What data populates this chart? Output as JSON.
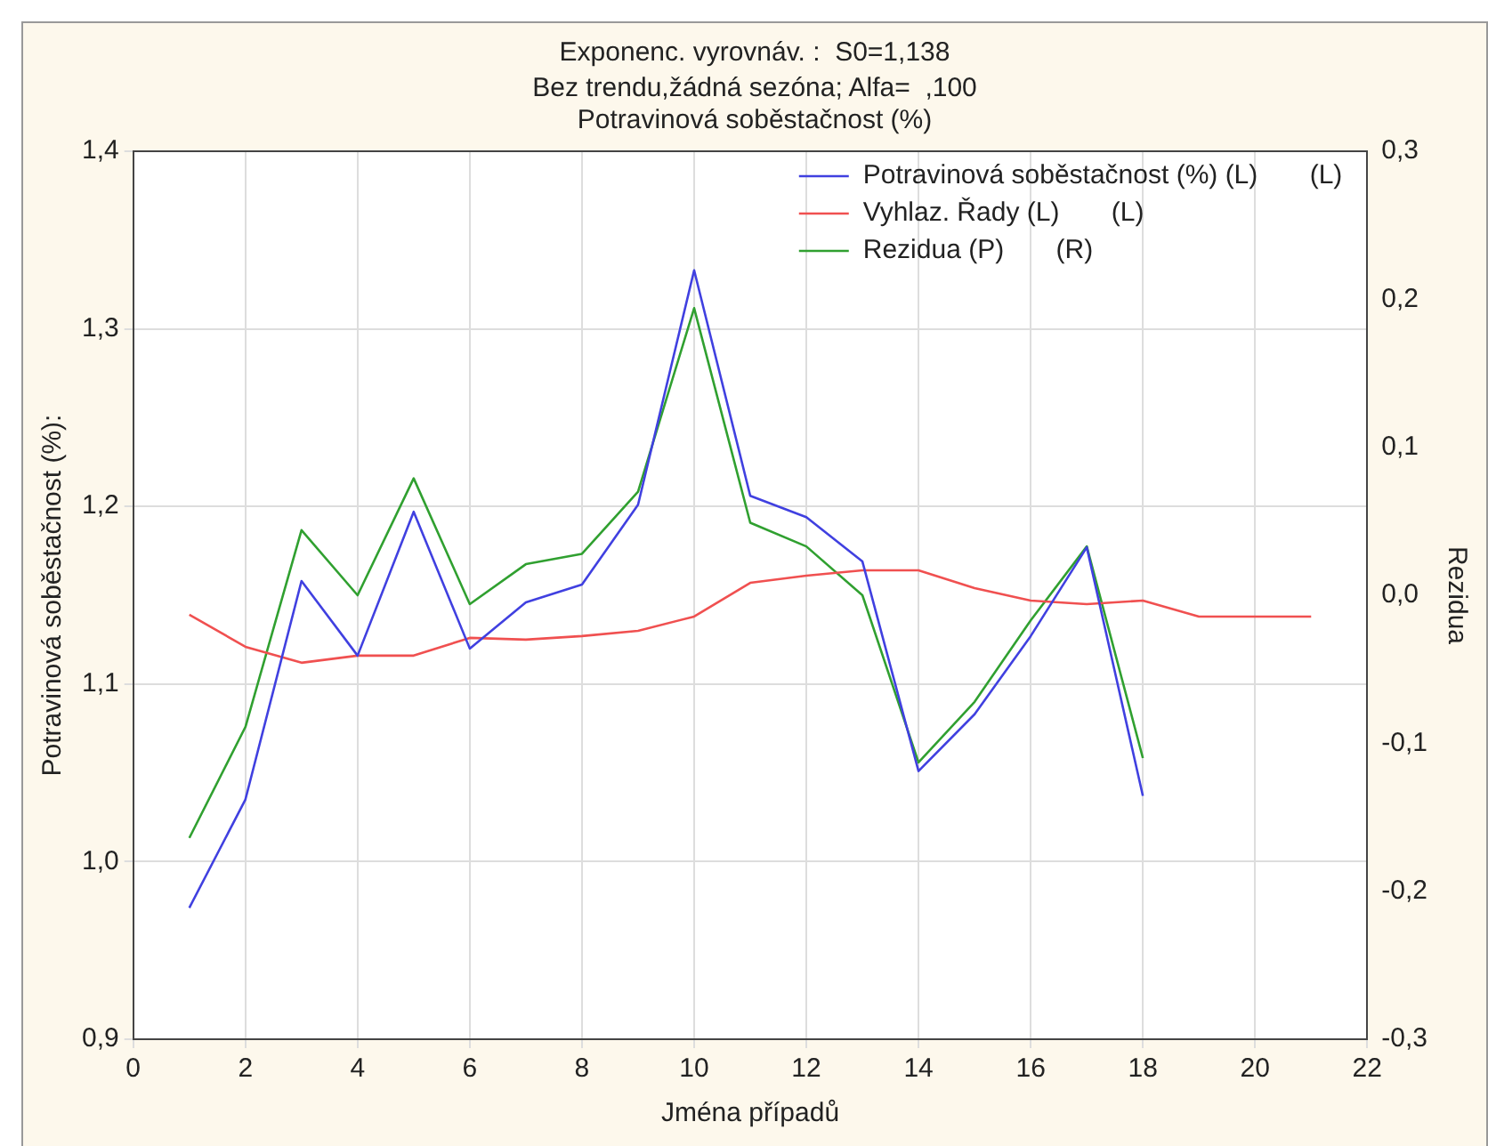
{
  "chart_data": {
    "type": "line",
    "title": "Exponenc. vyrovnáv. :  S0=1,138",
    "subtitle": [
      "Bez trendu,žádná sezóna; Alfa=  ,100",
      "Potravinová soběstačnost (%)"
    ],
    "xlabel": "Jména případů",
    "ylabel": "Potravinová soběstačnost (%):",
    "y2label": "Rezidua",
    "xlim": [
      0,
      22
    ],
    "xticks": [
      0,
      2,
      4,
      6,
      8,
      10,
      12,
      14,
      16,
      18,
      20,
      22
    ],
    "ylim": [
      0.9,
      1.4
    ],
    "yticks": [
      {
        "value": 0.9,
        "label": "0,9"
      },
      {
        "value": 1.0,
        "label": "1,0"
      },
      {
        "value": 1.1,
        "label": "1,1"
      },
      {
        "value": 1.2,
        "label": "1,2"
      },
      {
        "value": 1.3,
        "label": "1,3"
      },
      {
        "value": 1.4,
        "label": "1,4"
      }
    ],
    "y2lim": [
      -0.3,
      0.3
    ],
    "y2ticks": [
      {
        "value": -0.3,
        "label": "-0,3"
      },
      {
        "value": -0.2,
        "label": "-0,2"
      },
      {
        "value": -0.1,
        "label": "-0,1"
      },
      {
        "value": 0,
        "label": "0,0"
      },
      {
        "value": 0.1,
        "label": "0,1"
      },
      {
        "value": 0.2,
        "label": "0,2"
      },
      {
        "value": 0.3,
        "label": "0,3"
      }
    ],
    "grid": true,
    "legend": "top right",
    "marker": "none",
    "line_style": "solid",
    "series": [
      {
        "name": "Potravinová soběstačnost (%) (L)       (L)",
        "color": "#4040e0",
        "x": [
          1,
          2,
          3,
          4,
          5,
          6,
          7,
          8,
          9,
          10,
          11,
          12,
          13,
          14,
          15,
          16,
          17,
          18
        ],
        "values": [
          0.974,
          1.035,
          1.158,
          1.116,
          1.197,
          1.12,
          1.146,
          1.156,
          1.201,
          1.333,
          1.206,
          1.194,
          1.169,
          1.051,
          1.083,
          1.127,
          1.177,
          1.037
        ]
      },
      {
        "name": "Vyhlaz. Řady (L)       (L)",
        "color": "#f05050",
        "x": [
          1,
          2,
          3,
          4,
          5,
          6,
          7,
          8,
          9,
          10,
          11,
          12,
          13,
          14,
          15,
          16,
          17,
          18,
          19,
          20,
          21
        ],
        "values": [
          1.139,
          1.121,
          1.112,
          1.116,
          1.116,
          1.126,
          1.125,
          1.127,
          1.13,
          1.138,
          1.157,
          1.161,
          1.164,
          1.164,
          1.154,
          1.147,
          1.145,
          1.147,
          1.138,
          1.138,
          1.138
        ]
      },
      {
        "name": "Rezidua (P)       (R)",
        "color": "#30a030",
        "axis": "y2",
        "x": [
          1,
          2,
          3,
          4,
          5,
          6,
          7,
          8,
          9,
          10,
          11,
          12,
          13,
          14,
          15,
          16,
          17,
          18
        ],
        "values": [
          -0.164,
          -0.089,
          0.044,
          0.0,
          0.079,
          -0.006,
          0.021,
          0.028,
          0.07,
          0.194,
          0.049,
          0.033,
          0.0,
          -0.113,
          -0.072,
          -0.017,
          0.033,
          -0.11
        ]
      }
    ]
  }
}
